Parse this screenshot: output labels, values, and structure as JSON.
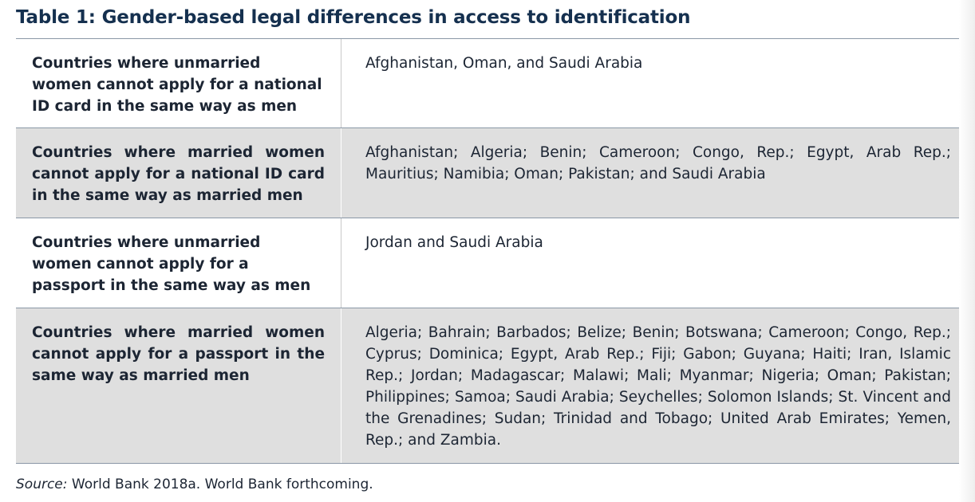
{
  "table": {
    "title": "Table 1: Gender-based legal differences in access to identification",
    "rows": [
      {
        "label": "Countries where unmarried women cannot apply for a national ID card in the same way as men",
        "value": "Afghanistan, Oman, and Saudi Arabia"
      },
      {
        "label": "Countries where married women cannot apply for a national ID card in the same way as married men",
        "value": "Afghanistan; Algeria; Benin; Cameroon; Congo, Rep.; Egypt, Arab Rep.; Mauritius; Namibia; Oman; Pakistan; and Saudi Arabia"
      },
      {
        "label": "Countries where unmarried women cannot apply for a passport in the same way as men",
        "value": "Jordan and Saudi Arabia"
      },
      {
        "label": "Countries where married women cannot apply for a passport in the same way as married men",
        "value": "Algeria; Bahrain; Barbados; Belize; Benin; Botswana; Cameroon; Congo, Rep.; Cyprus; Dominica; Egypt, Arab Rep.; Fiji; Gabon; Guyana; Haiti; Iran, Islamic Rep.; Jordan; Madagascar; Malawi; Mali; Myanmar; Nigeria; Oman; Pakistan; Philippines; Samoa; Saudi Arabia; Seychelles; Solomon Islands; St. Vincent and the Grenadines; Sudan; Trinidad and Tobago; United Arab Emirates; Yemen, Rep.; and Zambia."
      }
    ]
  },
  "source": {
    "label": "Source:",
    "text": " World Bank 2018a. World Bank forthcoming."
  }
}
